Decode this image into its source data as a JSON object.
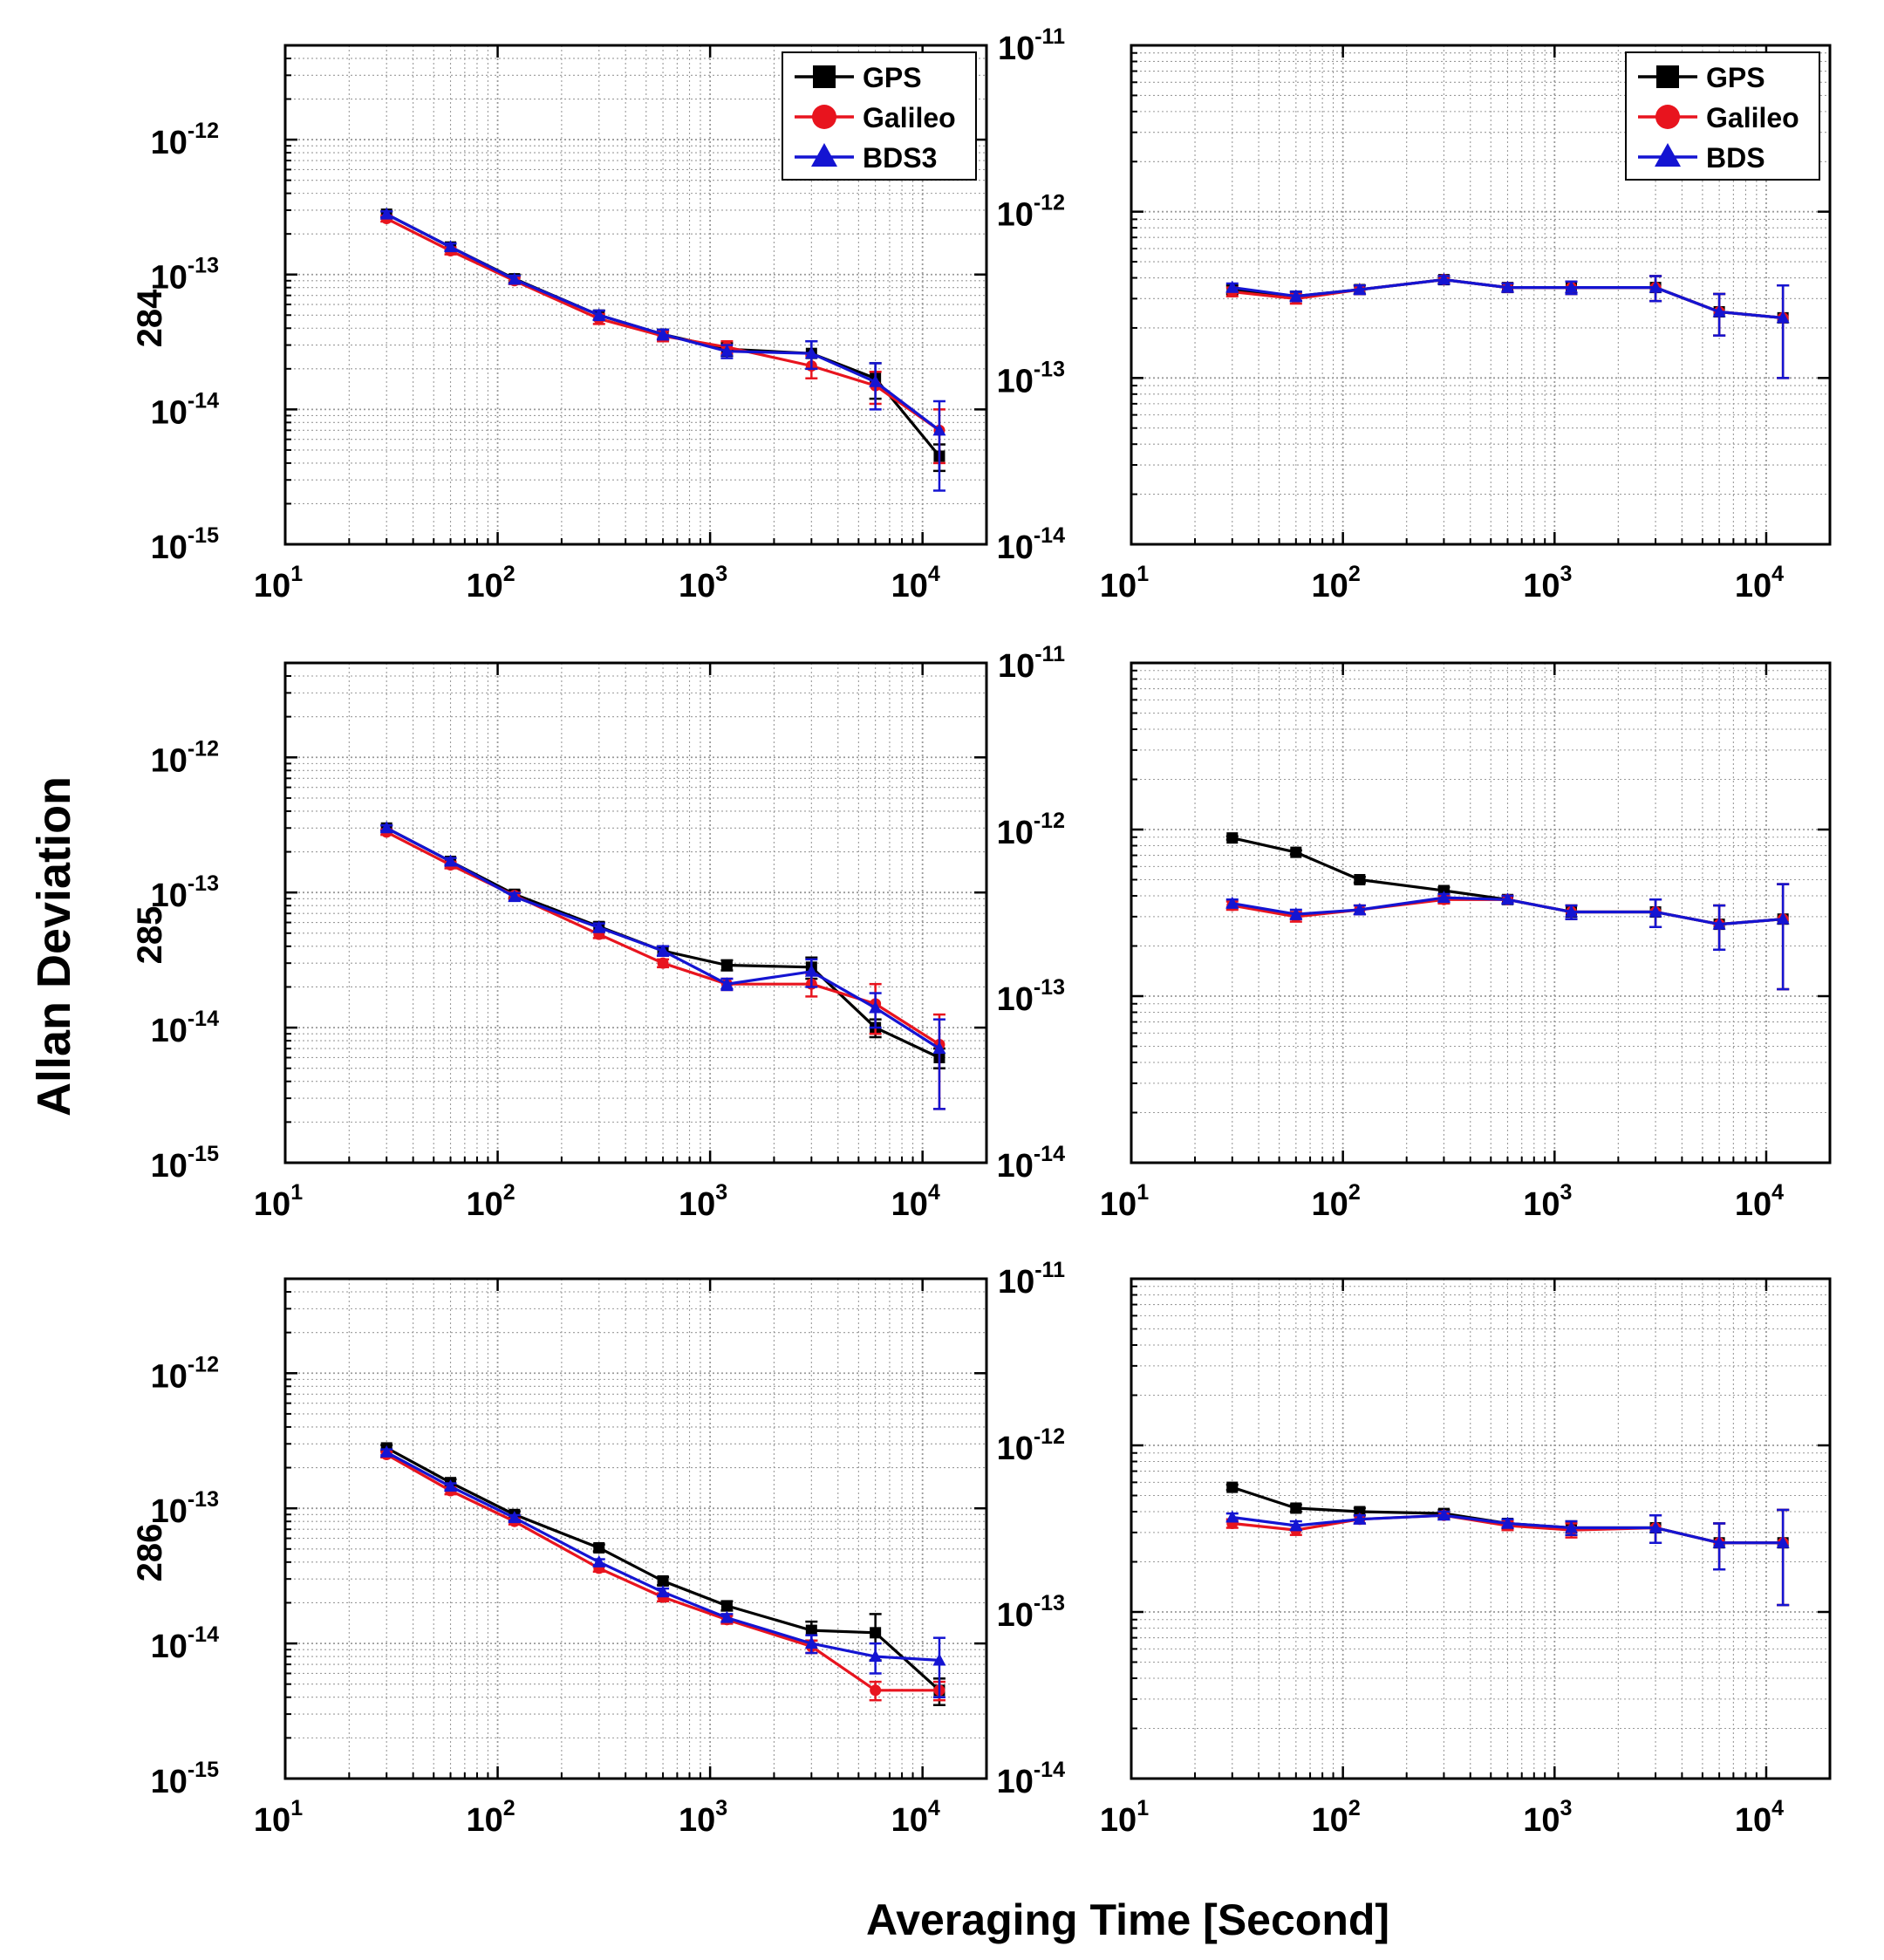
{
  "figure": {
    "ylabel": "Allan Deviation",
    "xlabel": "Averaging Time [Second]",
    "rows": [
      "284",
      "285",
      "286"
    ]
  },
  "colors": {
    "GPS": "#000000",
    "Galileo": "#e8141e",
    "BDS": "#1414d2",
    "grid": "#9a9a9a"
  },
  "chart_data": [
    {
      "type": "line",
      "row": "284",
      "column": "left",
      "xscale": "log",
      "yscale": "log",
      "xlim": [
        10,
        20000
      ],
      "ylim": [
        1e-15,
        5e-12
      ],
      "xticks": [
        {
          "base": "10",
          "exp": "1"
        },
        {
          "base": "10",
          "exp": "2"
        },
        {
          "base": "10",
          "exp": "3"
        },
        {
          "base": "10",
          "exp": "4"
        }
      ],
      "yticks": [
        {
          "base": "10",
          "exp": "-15"
        },
        {
          "base": "10",
          "exp": "-14"
        },
        {
          "base": "10",
          "exp": "-13"
        },
        {
          "base": "10",
          "exp": "-12"
        }
      ],
      "grid": true,
      "legend": "top-right",
      "x": [
        30,
        60,
        120,
        300,
        600,
        1200,
        3000,
        6000,
        12000
      ],
      "series": [
        {
          "name": "GPS",
          "marker": "square",
          "values": [
            2.8e-13,
            1.6e-13,
            9.3e-14,
            5e-14,
            3.6e-14,
            2.8e-14,
            2.6e-14,
            1.7e-14,
            4.5e-15
          ],
          "err": [
            1.4e-14,
            1e-14,
            6e-15,
            4e-15,
            3e-15,
            3e-15,
            6e-15,
            5e-15,
            1e-15
          ]
        },
        {
          "name": "Galileo",
          "marker": "circle",
          "values": [
            2.6e-13,
            1.5e-13,
            9e-14,
            4.7e-14,
            3.5e-14,
            2.9e-14,
            2.1e-14,
            1.5e-14,
            7e-15
          ],
          "err": [
            1.3e-14,
            9e-15,
            5e-15,
            4e-15,
            3e-15,
            3e-15,
            4e-15,
            4e-15,
            3e-15
          ]
        },
        {
          "name": "BDS3",
          "marker": "triangle",
          "values": [
            2.8e-13,
            1.6e-13,
            9.2e-14,
            5e-14,
            3.6e-14,
            2.7e-14,
            2.6e-14,
            1.6e-14,
            7e-15
          ],
          "err": [
            1.4e-14,
            1e-14,
            6e-15,
            4e-15,
            3e-15,
            3e-15,
            6e-15,
            6e-15,
            4.5e-15
          ]
        }
      ]
    },
    {
      "type": "line",
      "row": "284",
      "column": "right",
      "xscale": "log",
      "yscale": "log",
      "xlim": [
        10,
        20000
      ],
      "ylim": [
        1e-14,
        1e-11
      ],
      "xticks": [
        {
          "base": "10",
          "exp": "1"
        },
        {
          "base": "10",
          "exp": "2"
        },
        {
          "base": "10",
          "exp": "3"
        },
        {
          "base": "10",
          "exp": "4"
        }
      ],
      "yticks": [
        {
          "base": "10",
          "exp": "-14"
        },
        {
          "base": "10",
          "exp": "-13"
        },
        {
          "base": "10",
          "exp": "-12"
        },
        {
          "base": "10",
          "exp": "-11"
        }
      ],
      "grid": true,
      "legend": "top-right",
      "x": [
        30,
        60,
        120,
        300,
        600,
        1200,
        3000,
        6000,
        12000
      ],
      "series": [
        {
          "name": "GPS",
          "marker": "square",
          "values": [
            3.4e-13,
            3.1e-13,
            3.4e-13,
            3.9e-13,
            3.5e-13,
            3.5e-13,
            3.5e-13,
            2.5e-13,
            2.3e-13
          ],
          "err": [
            2e-14,
            2e-14,
            2e-14,
            2e-14,
            2e-14,
            3e-14,
            6e-14,
            7e-14,
            1.3e-13
          ]
        },
        {
          "name": "Galileo",
          "marker": "circle",
          "values": [
            3.3e-13,
            3e-13,
            3.4e-13,
            3.9e-13,
            3.5e-13,
            3.5e-13,
            3.5e-13,
            2.5e-13,
            2.3e-13
          ],
          "err": [
            2e-14,
            2e-14,
            2e-14,
            2e-14,
            2e-14,
            3e-14,
            6e-14,
            7e-14,
            1.3e-13
          ]
        },
        {
          "name": "BDS",
          "marker": "triangle",
          "values": [
            3.5e-13,
            3.1e-13,
            3.4e-13,
            3.9e-13,
            3.5e-13,
            3.5e-13,
            3.5e-13,
            2.5e-13,
            2.3e-13
          ],
          "err": [
            2e-14,
            2e-14,
            2e-14,
            2e-14,
            2e-14,
            3e-14,
            6e-14,
            7e-14,
            1.3e-13
          ]
        }
      ]
    },
    {
      "type": "line",
      "row": "285",
      "column": "left",
      "xscale": "log",
      "yscale": "log",
      "xlim": [
        10,
        20000
      ],
      "ylim": [
        1e-15,
        5e-12
      ],
      "xticks": [
        {
          "base": "10",
          "exp": "1"
        },
        {
          "base": "10",
          "exp": "2"
        },
        {
          "base": "10",
          "exp": "3"
        },
        {
          "base": "10",
          "exp": "4"
        }
      ],
      "yticks": [
        {
          "base": "10",
          "exp": "-15"
        },
        {
          "base": "10",
          "exp": "-14"
        },
        {
          "base": "10",
          "exp": "-13"
        },
        {
          "base": "10",
          "exp": "-12"
        }
      ],
      "grid": true,
      "legend": "none",
      "x": [
        30,
        60,
        120,
        300,
        600,
        1200,
        3000,
        6000,
        12000
      ],
      "series": [
        {
          "name": "GPS",
          "marker": "square",
          "values": [
            3e-13,
            1.7e-13,
            9.7e-14,
            5.6e-14,
            3.7e-14,
            2.9e-14,
            2.8e-14,
            1e-14,
            6e-15
          ],
          "err": [
            1.4e-14,
            1e-14,
            6e-15,
            4e-15,
            3e-15,
            2.5e-15,
            5e-15,
            1.5e-15,
            1e-15
          ]
        },
        {
          "name": "Galileo",
          "marker": "circle",
          "values": [
            2.8e-13,
            1.6e-13,
            9.5e-14,
            4.9e-14,
            3e-14,
            2.1e-14,
            2.1e-14,
            1.5e-14,
            7.5e-15
          ],
          "err": [
            1.3e-14,
            9e-15,
            5e-15,
            3e-15,
            2e-15,
            2e-15,
            4e-15,
            6e-15,
            5e-15
          ]
        },
        {
          "name": "BDS3",
          "marker": "triangle",
          "values": [
            3e-13,
            1.7e-13,
            9.3e-14,
            5.5e-14,
            3.7e-14,
            2.1e-14,
            2.6e-14,
            1.4e-14,
            7e-15
          ],
          "err": [
            1.4e-14,
            1e-14,
            6e-15,
            4e-15,
            3e-15,
            2e-15,
            6e-15,
            4e-15,
            4.5e-15
          ]
        }
      ]
    },
    {
      "type": "line",
      "row": "285",
      "column": "right",
      "xscale": "log",
      "yscale": "log",
      "xlim": [
        10,
        20000
      ],
      "ylim": [
        1e-14,
        1e-11
      ],
      "xticks": [
        {
          "base": "10",
          "exp": "1"
        },
        {
          "base": "10",
          "exp": "2"
        },
        {
          "base": "10",
          "exp": "3"
        },
        {
          "base": "10",
          "exp": "4"
        }
      ],
      "yticks": [
        {
          "base": "10",
          "exp": "-14"
        },
        {
          "base": "10",
          "exp": "-13"
        },
        {
          "base": "10",
          "exp": "-12"
        },
        {
          "base": "10",
          "exp": "-11"
        }
      ],
      "grid": true,
      "legend": "none",
      "x": [
        30,
        60,
        120,
        300,
        600,
        1200,
        3000,
        6000,
        12000
      ],
      "series": [
        {
          "name": "GPS",
          "marker": "square",
          "values": [
            8.9e-13,
            7.3e-13,
            5e-13,
            4.3e-13,
            3.8e-13,
            3.2e-13,
            3.2e-13,
            2.7e-13,
            2.9e-13
          ],
          "err": [
            2e-14,
            2e-14,
            2e-14,
            2e-14,
            2e-14,
            3e-14,
            6e-14,
            8e-14,
            1.8e-13
          ]
        },
        {
          "name": "Galileo",
          "marker": "circle",
          "values": [
            3.5e-13,
            3e-13,
            3.3e-13,
            3.8e-13,
            3.8e-13,
            3.2e-13,
            3.2e-13,
            2.7e-13,
            2.9e-13
          ],
          "err": [
            2e-14,
            2e-14,
            2e-14,
            2e-14,
            2e-14,
            3e-14,
            6e-14,
            8e-14,
            1.8e-13
          ]
        },
        {
          "name": "BDS",
          "marker": "triangle",
          "values": [
            3.6e-13,
            3.1e-13,
            3.3e-13,
            3.9e-13,
            3.8e-13,
            3.2e-13,
            3.2e-13,
            2.7e-13,
            2.9e-13
          ],
          "err": [
            2e-14,
            2e-14,
            2e-14,
            2e-14,
            2e-14,
            3e-14,
            6e-14,
            8e-14,
            1.8e-13
          ]
        }
      ]
    },
    {
      "type": "line",
      "row": "286",
      "column": "left",
      "xscale": "log",
      "yscale": "log",
      "xlim": [
        10,
        20000
      ],
      "ylim": [
        1e-15,
        5e-12
      ],
      "xticks": [
        {
          "base": "10",
          "exp": "1"
        },
        {
          "base": "10",
          "exp": "2"
        },
        {
          "base": "10",
          "exp": "3"
        },
        {
          "base": "10",
          "exp": "4"
        }
      ],
      "yticks": [
        {
          "base": "10",
          "exp": "-15"
        },
        {
          "base": "10",
          "exp": "-14"
        },
        {
          "base": "10",
          "exp": "-13"
        },
        {
          "base": "10",
          "exp": "-12"
        }
      ],
      "grid": true,
      "legend": "none",
      "x": [
        30,
        60,
        120,
        300,
        600,
        1200,
        3000,
        6000,
        12000
      ],
      "series": [
        {
          "name": "GPS",
          "marker": "square",
          "values": [
            2.8e-13,
            1.55e-13,
            9e-14,
            5.1e-14,
            2.9e-14,
            1.9e-14,
            1.25e-14,
            1.2e-14,
            4.5e-15
          ],
          "err": [
            1.4e-14,
            9e-15,
            5e-15,
            3e-15,
            2e-15,
            1.5e-15,
            2e-15,
            4.5e-15,
            1e-15
          ]
        },
        {
          "name": "Galileo",
          "marker": "circle",
          "values": [
            2.5e-13,
            1.35e-13,
            8e-14,
            3.6e-14,
            2.2e-14,
            1.5e-14,
            9.5e-15,
            4.5e-15,
            4.5e-15
          ],
          "err": [
            1.2e-14,
            8e-15,
            4e-15,
            2e-15,
            1.5e-15,
            1e-15,
            1e-15,
            7e-16,
            7e-16
          ]
        },
        {
          "name": "BDS3",
          "marker": "triangle",
          "values": [
            2.6e-13,
            1.45e-13,
            8.5e-14,
            4e-14,
            2.4e-14,
            1.55e-14,
            1e-14,
            8e-15,
            7.5e-15
          ],
          "err": [
            1.3e-14,
            8e-15,
            4e-15,
            2e-15,
            1.5e-15,
            1e-15,
            1.5e-15,
            2e-15,
            3.5e-15
          ]
        }
      ]
    },
    {
      "type": "line",
      "row": "286",
      "column": "right",
      "xscale": "log",
      "yscale": "log",
      "xlim": [
        10,
        20000
      ],
      "ylim": [
        1e-14,
        1e-11
      ],
      "xticks": [
        {
          "base": "10",
          "exp": "1"
        },
        {
          "base": "10",
          "exp": "2"
        },
        {
          "base": "10",
          "exp": "3"
        },
        {
          "base": "10",
          "exp": "4"
        }
      ],
      "yticks": [
        {
          "base": "10",
          "exp": "-14"
        },
        {
          "base": "10",
          "exp": "-13"
        },
        {
          "base": "10",
          "exp": "-12"
        },
        {
          "base": "10",
          "exp": "-11"
        }
      ],
      "grid": true,
      "legend": "none",
      "x": [
        30,
        60,
        120,
        300,
        600,
        1200,
        3000,
        6000,
        12000
      ],
      "series": [
        {
          "name": "GPS",
          "marker": "square",
          "values": [
            5.6e-13,
            4.2e-13,
            4e-13,
            3.9e-13,
            3.4e-13,
            3.2e-13,
            3.2e-13,
            2.6e-13,
            2.6e-13
          ],
          "err": [
            2e-14,
            2e-14,
            2e-14,
            2e-14,
            2e-14,
            3e-14,
            6e-14,
            8e-14,
            1.5e-13
          ]
        },
        {
          "name": "Galileo",
          "marker": "circle",
          "values": [
            3.4e-13,
            3.1e-13,
            3.6e-13,
            3.8e-13,
            3.3e-13,
            3.1e-13,
            3.2e-13,
            2.6e-13,
            2.6e-13
          ],
          "err": [
            2e-14,
            2e-14,
            2e-14,
            2e-14,
            2e-14,
            3e-14,
            6e-14,
            8e-14,
            1.5e-13
          ]
        },
        {
          "name": "BDS",
          "marker": "triangle",
          "values": [
            3.7e-13,
            3.3e-13,
            3.6e-13,
            3.8e-13,
            3.4e-13,
            3.2e-13,
            3.2e-13,
            2.6e-13,
            2.6e-13
          ],
          "err": [
            2e-14,
            2e-14,
            2e-14,
            2e-14,
            2e-14,
            3e-14,
            6e-14,
            8e-14,
            1.5e-13
          ]
        }
      ]
    }
  ]
}
